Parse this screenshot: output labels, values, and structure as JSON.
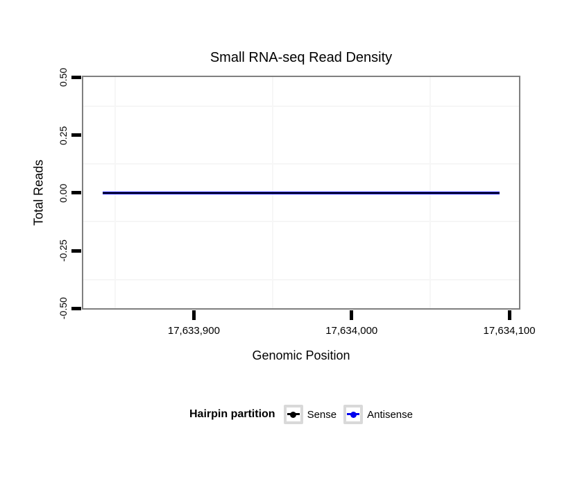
{
  "title": "Small RNA-seq Read Density",
  "chart_data": {
    "type": "line",
    "title": "Small RNA-seq Read Density",
    "xlabel": "Genomic Position",
    "ylabel": "Total Reads",
    "xlim": [
      17633829,
      17634107
    ],
    "ylim": [
      -0.505,
      0.507
    ],
    "x_ticks": [
      {
        "value": 17633900,
        "label": "17,633,900"
      },
      {
        "value": 17634000,
        "label": "17,634,000"
      },
      {
        "value": 17634100,
        "label": "17,634,100"
      }
    ],
    "y_ticks": [
      {
        "value": 0.5,
        "label": "0.50"
      },
      {
        "value": 0.25,
        "label": "0.25"
      },
      {
        "value": 0.0,
        "label": "0.00"
      },
      {
        "value": -0.25,
        "label": "-0.25"
      },
      {
        "value": -0.5,
        "label": "-0.50"
      }
    ],
    "grid": {
      "minor_x": [
        17633850,
        17633950,
        17634050
      ],
      "minor_y": [
        0.375,
        0.125,
        -0.125,
        -0.375
      ],
      "grid_on": true
    },
    "series": [
      {
        "name": "Sense",
        "color": "#000000",
        "x_start": 17633842,
        "x_end": 17634094,
        "y": 0,
        "thickness": 2
      },
      {
        "name": "Antisense",
        "color": "#0000EE",
        "x_start": 17633842,
        "x_end": 17634094,
        "y": 0,
        "thickness": 4
      }
    ],
    "legend": {
      "title": "Hairpin partition",
      "position": "bottom",
      "entries": [
        {
          "label": "Sense",
          "color": "#000000"
        },
        {
          "label": "Antisense",
          "color": "#0000EE"
        }
      ]
    }
  },
  "colors": {
    "background": "#ffffff",
    "panel_border": "#7f7f7f",
    "tick": "#000000",
    "grid_minor": "#f6f6f6",
    "legend_key_border": "#d9d9d9"
  }
}
